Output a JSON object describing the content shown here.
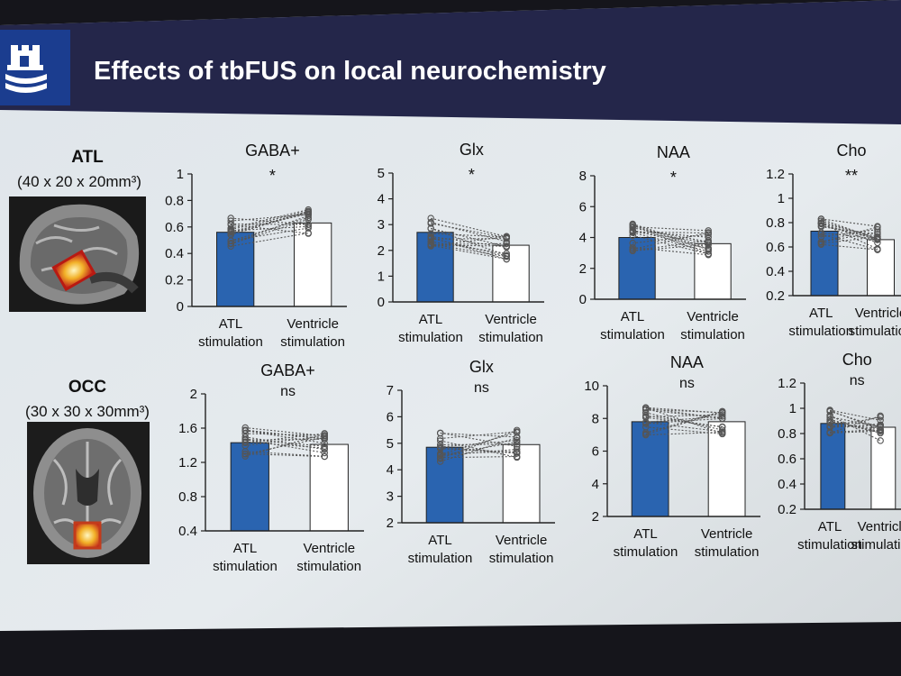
{
  "slide": {
    "title": "Effects of tbFUS on local neurochemistry",
    "logo_icon": "university-castle-logo",
    "colors": {
      "header": "#24264a",
      "atl_bar": "#2a64b0",
      "ventricle_bar": "#ffffff",
      "background": "#e4e9ed"
    }
  },
  "regions": [
    {
      "name": "ATL",
      "size": "(40 x 20 x 20mm³)",
      "image": "brain-sagittal-mri-icon"
    },
    {
      "name": "OCC",
      "size": "(30 x 30 x 30mm³)",
      "image": "brain-axial-mri-icon"
    }
  ],
  "chart_data": [
    {
      "type": "bar",
      "region": "ATL",
      "title": "GABA+",
      "significance": "*",
      "categories": [
        "ATL stimulation",
        "Ventricle stimulation"
      ],
      "values": [
        0.56,
        0.63
      ],
      "ylim": [
        0,
        1
      ],
      "yticks": [
        "0",
        "0.2",
        "0.4",
        "0.6",
        "0.8",
        "1"
      ]
    },
    {
      "type": "bar",
      "region": "ATL",
      "title": "Glx",
      "significance": "*",
      "categories": [
        "ATL stimulation",
        "Ventricle stimulation"
      ],
      "values": [
        2.7,
        2.2
      ],
      "ylim": [
        0,
        5
      ],
      "yticks": [
        "0",
        "1",
        "2",
        "3",
        "4",
        "5"
      ]
    },
    {
      "type": "bar",
      "region": "ATL",
      "title": "NAA",
      "significance": "*",
      "categories": [
        "ATL stimulation",
        "Ventricle stimulation"
      ],
      "values": [
        4.0,
        3.6
      ],
      "ylim": [
        0,
        8
      ],
      "yticks": [
        "0",
        "2",
        "4",
        "6",
        "8"
      ]
    },
    {
      "type": "bar",
      "region": "ATL",
      "title": "Cho",
      "significance": "**",
      "categories": [
        "ATL stimulation",
        "Ventricle stimulation"
      ],
      "values": [
        0.73,
        0.66
      ],
      "ylim": [
        0.2,
        1.2
      ],
      "yticks": [
        "0.2",
        "0.4",
        "0.6",
        "0.8",
        "1",
        "1.2"
      ]
    },
    {
      "type": "bar",
      "region": "OCC",
      "title": "GABA+",
      "significance": "ns",
      "categories": [
        "ATL stimulation",
        "Ventricle stimulation"
      ],
      "values": [
        1.43,
        1.41
      ],
      "ylim": [
        0.4,
        2
      ],
      "yticks": [
        "0.4",
        "0.8",
        "1.2",
        "1.6",
        "2"
      ]
    },
    {
      "type": "bar",
      "region": "OCC",
      "title": "Glx",
      "significance": "ns",
      "categories": [
        "ATL stimulation",
        "Ventricle stimulation"
      ],
      "values": [
        4.85,
        4.95
      ],
      "ylim": [
        2,
        7
      ],
      "yticks": [
        "2",
        "3",
        "4",
        "5",
        "6",
        "7"
      ]
    },
    {
      "type": "bar",
      "region": "OCC",
      "title": "NAA",
      "significance": "ns",
      "categories": [
        "ATL stimulation",
        "Ventricle stimulation"
      ],
      "values": [
        7.8,
        7.8
      ],
      "ylim": [
        2,
        10
      ],
      "yticks": [
        "2",
        "4",
        "6",
        "8",
        "10"
      ]
    },
    {
      "type": "bar",
      "region": "OCC",
      "title": "Cho",
      "significance": "ns",
      "categories": [
        "ATL stimulation",
        "Ventricle stimulation"
      ],
      "values": [
        0.88,
        0.85
      ],
      "ylim": [
        0.2,
        1.2
      ],
      "yticks": [
        "0.2",
        "0.4",
        "0.6",
        "0.8",
        "1",
        "1.2"
      ]
    }
  ]
}
